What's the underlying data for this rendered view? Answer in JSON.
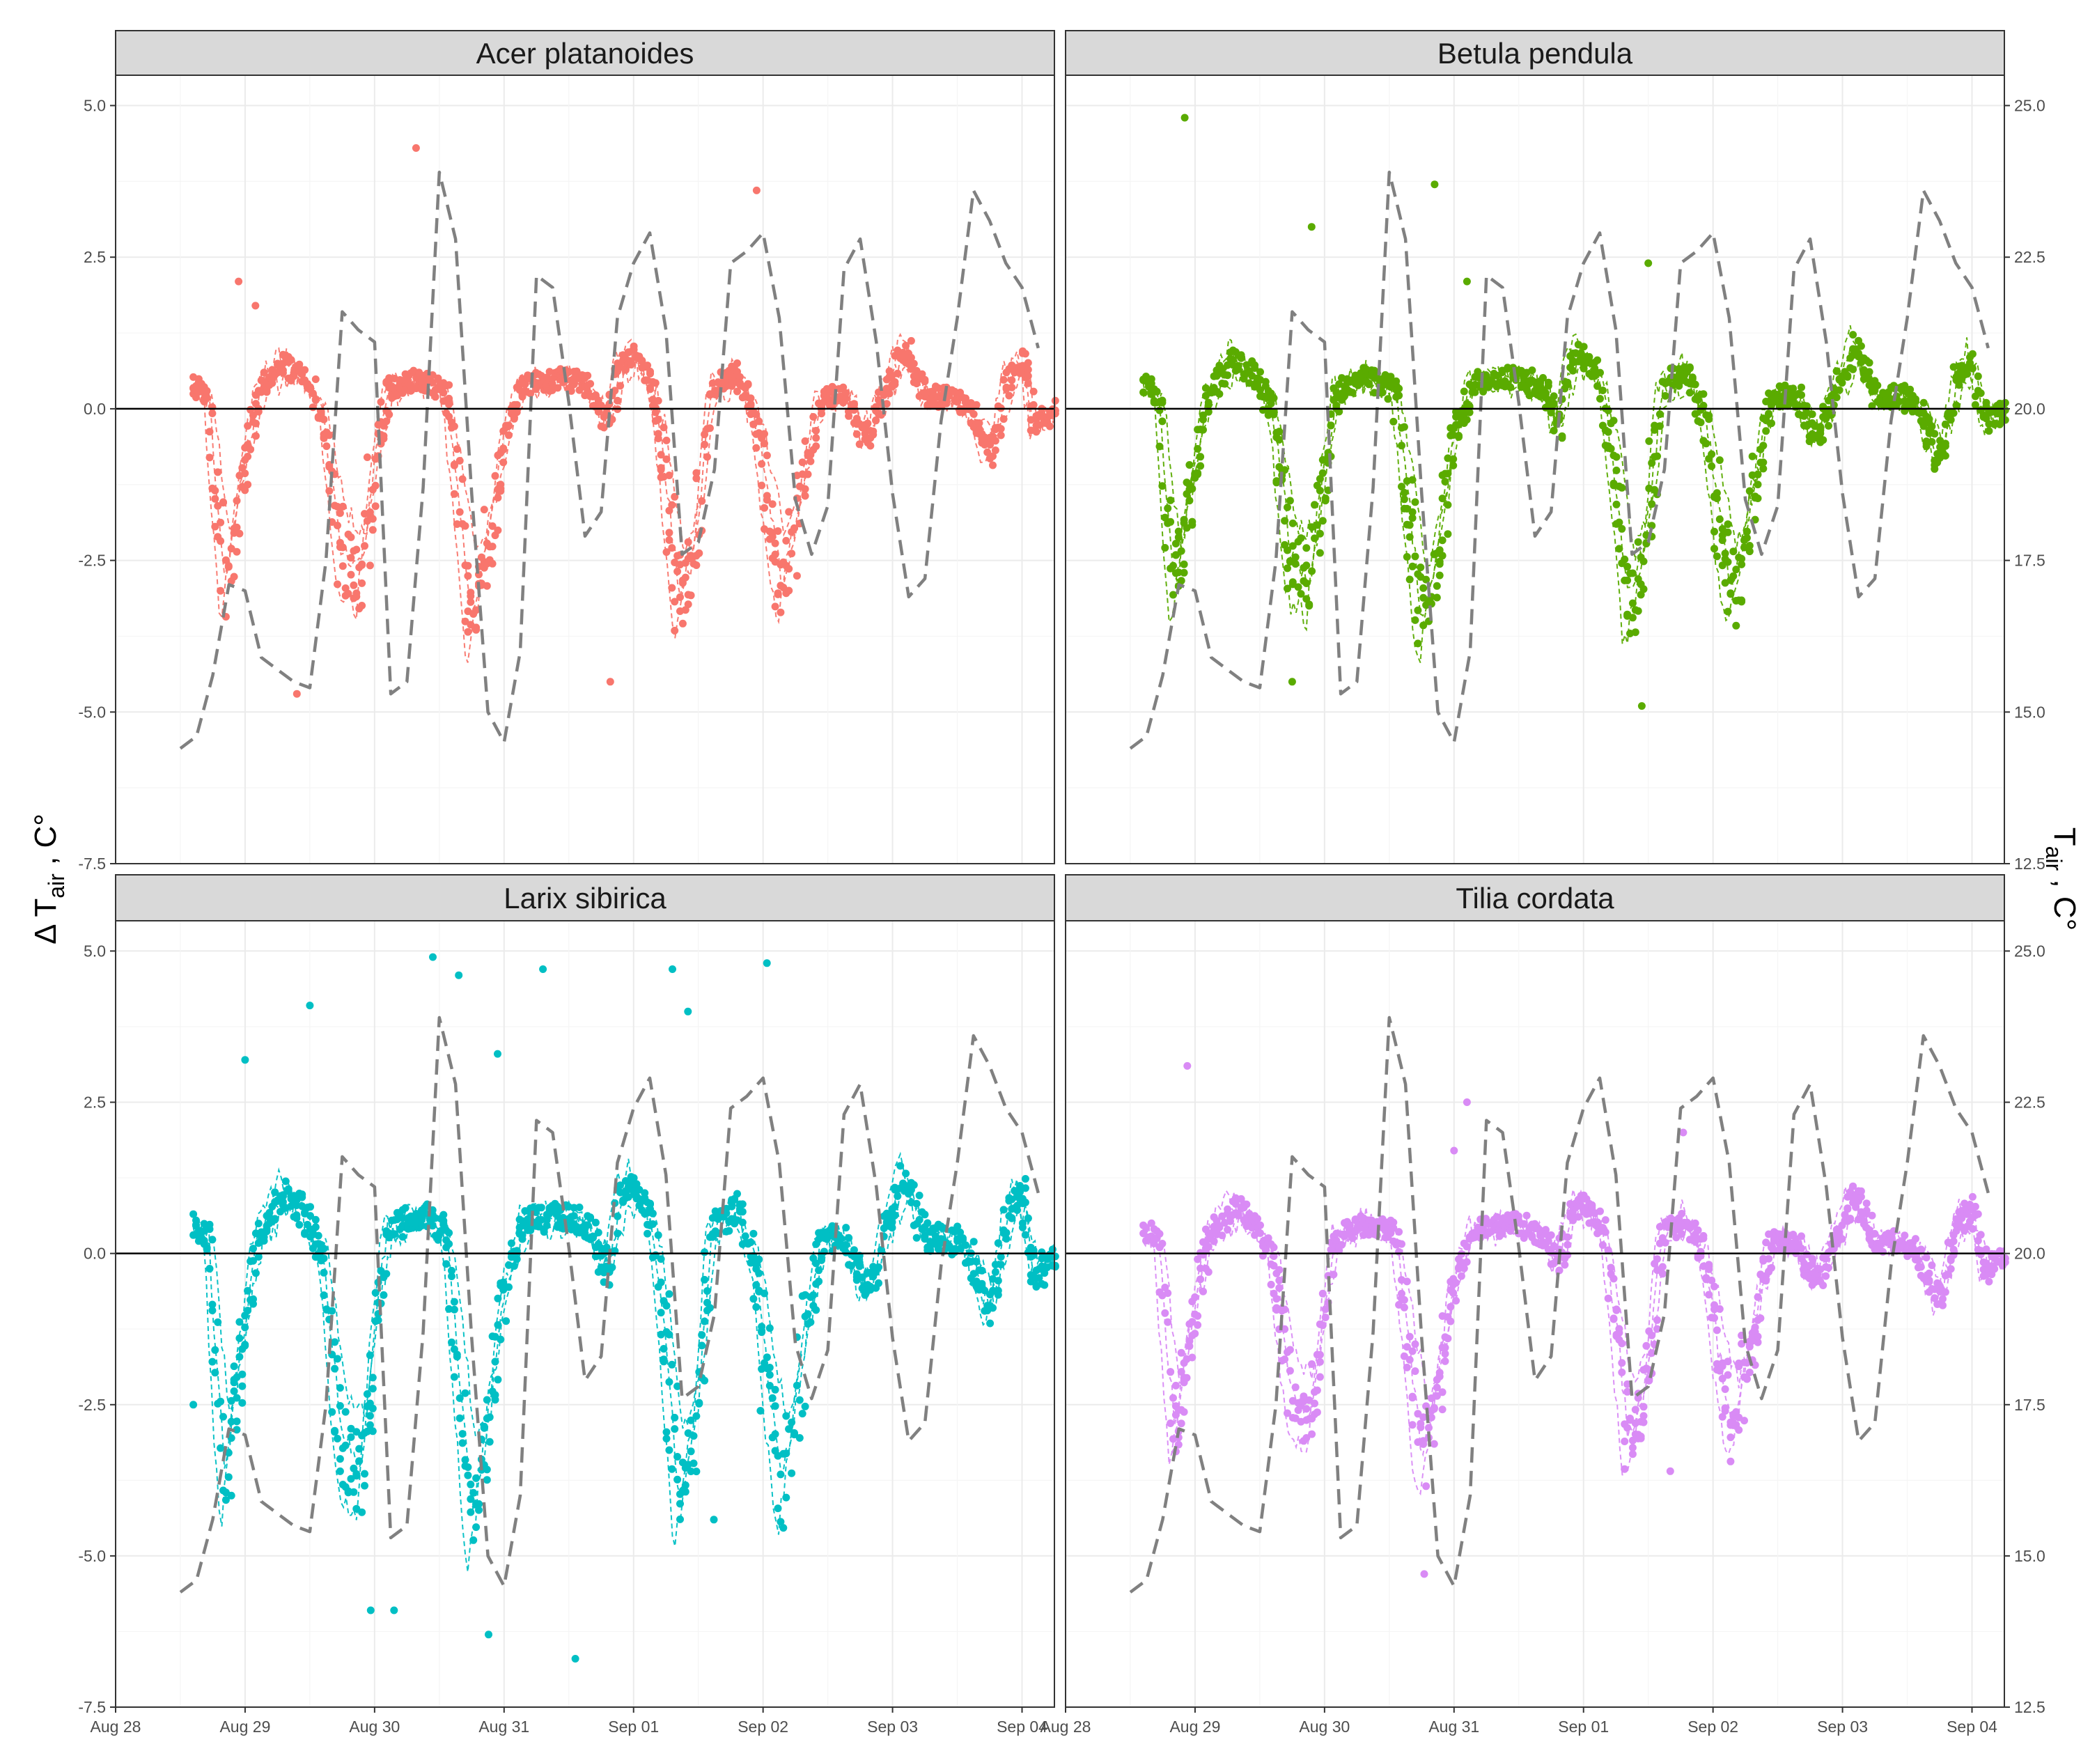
{
  "chart_data": {
    "type": "scatter",
    "layout": "facet-grid 2x2",
    "ylabel": "Δ T",
    "ylabel_subscript": "air",
    "ylabel_suffix": " , C°",
    "y2label": "T",
    "y2label_subscript": "air",
    "y2label_suffix": " , C°",
    "ylim": [
      -7.5,
      5.5
    ],
    "y2lim": [
      12.5,
      25.5
    ],
    "xlim": [
      "2021-08-28 00:00",
      "2021-09-04 06:00"
    ],
    "y_ticks": [
      "5.0",
      "2.5",
      "0.0",
      "-2.5",
      "-5.0",
      "-7.5"
    ],
    "y_tick_values": [
      5,
      2.5,
      0,
      -2.5,
      -5,
      -7.5
    ],
    "y2_ticks": [
      "25.0",
      "22.5",
      "20.0",
      "17.5",
      "15.0",
      "12.5"
    ],
    "y2_tick_values": [
      25,
      22.5,
      20,
      17.5,
      15,
      12.5
    ],
    "x_ticks": [
      "Aug 28",
      "Aug 29",
      "Aug 30",
      "Aug 31",
      "Sep 01",
      "Sep 02",
      "Sep 03",
      "Sep 04"
    ],
    "x_tick_values": [
      "2021-08-28",
      "2021-08-29",
      "2021-08-30",
      "2021-08-31",
      "2021-09-01",
      "2021-09-02",
      "2021-09-03",
      "2021-09-04"
    ],
    "grid": true,
    "hline_y": 0,
    "air_temperature": {
      "style": "dashed",
      "color": "#808080",
      "x": [
        "2021-08-28 12:00",
        "2021-08-28 15:00",
        "2021-08-28 18:00",
        "2021-08-28 21:00",
        "2021-08-29 00:00",
        "2021-08-29 03:00",
        "2021-08-29 06:00",
        "2021-08-29 09:00",
        "2021-08-29 12:00",
        "2021-08-29 15:00",
        "2021-08-29 18:00",
        "2021-08-29 21:00",
        "2021-08-30 00:00",
        "2021-08-30 03:00",
        "2021-08-30 06:00",
        "2021-08-30 09:00",
        "2021-08-30 12:00",
        "2021-08-30 15:00",
        "2021-08-30 18:00",
        "2021-08-30 21:00",
        "2021-08-31 00:00",
        "2021-08-31 03:00",
        "2021-08-31 06:00",
        "2021-08-31 09:00",
        "2021-08-31 12:00",
        "2021-08-31 15:00",
        "2021-08-31 18:00",
        "2021-08-31 21:00",
        "2021-09-01 00:00",
        "2021-09-01 03:00",
        "2021-09-01 06:00",
        "2021-09-01 09:00",
        "2021-09-01 12:00",
        "2021-09-01 15:00",
        "2021-09-01 18:00",
        "2021-09-01 21:00",
        "2021-09-02 00:00",
        "2021-09-02 03:00",
        "2021-09-02 06:00",
        "2021-09-02 09:00",
        "2021-09-02 12:00",
        "2021-09-02 15:00",
        "2021-09-02 18:00",
        "2021-09-02 21:00",
        "2021-09-03 00:00",
        "2021-09-03 03:00",
        "2021-09-03 06:00",
        "2021-09-03 09:00",
        "2021-09-03 12:00",
        "2021-09-03 15:00",
        "2021-09-03 18:00",
        "2021-09-03 21:00",
        "2021-09-04 00:00",
        "2021-09-04 03:00"
      ],
      "values": [
        14.4,
        14.6,
        15.6,
        17.1,
        17.0,
        15.9,
        15.7,
        15.5,
        15.4,
        17.5,
        21.6,
        21.3,
        21.1,
        15.3,
        15.5,
        18.7,
        23.9,
        22.8,
        18.6,
        15.0,
        14.5,
        16.0,
        22.2,
        22.0,
        20.1,
        17.9,
        18.3,
        21.5,
        22.4,
        22.9,
        21.3,
        17.6,
        17.8,
        19.0,
        22.4,
        22.6,
        22.9,
        21.5,
        18.5,
        17.6,
        18.4,
        22.3,
        22.8,
        21.1,
        18.6,
        16.9,
        17.2,
        19.8,
        21.5,
        23.6,
        23.1,
        22.4,
        22.0,
        21.0
      ]
    },
    "series": [
      {
        "name": "Acer platanoides",
        "color": "#F8766D",
        "amp": 1.0,
        "seed": 11,
        "outliers": [
          [
            2.32,
            4.3
          ],
          [
            1.08,
            1.7
          ],
          [
            0.95,
            2.1
          ],
          [
            4.95,
            3.6
          ],
          [
            1.4,
            -4.7
          ],
          [
            3.82,
            -4.5
          ]
        ]
      },
      {
        "name": "Betula pendula",
        "color": "#5AAB00",
        "amp": 1.05,
        "seed": 23,
        "outliers": [
          [
            0.92,
            4.8
          ],
          [
            1.9,
            3.0
          ],
          [
            2.85,
            3.7
          ],
          [
            3.1,
            2.1
          ],
          [
            4.5,
            2.4
          ],
          [
            4.45,
            -4.9
          ],
          [
            1.75,
            -4.5
          ]
        ]
      },
      {
        "name": "Larix sibirica",
        "color": "#00BFC4",
        "amp": 1.3,
        "seed": 37,
        "outliers": [
          [
            1.5,
            4.1
          ],
          [
            2.45,
            4.9
          ],
          [
            2.65,
            4.6
          ],
          [
            3.3,
            4.7
          ],
          [
            5.03,
            4.8
          ],
          [
            4.3,
            4.7
          ],
          [
            4.42,
            4.0
          ],
          [
            1.0,
            3.2
          ],
          [
            2.95,
            3.3
          ],
          [
            1.97,
            -5.9
          ],
          [
            2.15,
            -5.9
          ],
          [
            2.88,
            -6.3
          ],
          [
            3.55,
            -6.7
          ],
          [
            4.62,
            -4.4
          ],
          [
            4.98,
            -2.6
          ],
          [
            0.6,
            -2.5
          ]
        ]
      },
      {
        "name": "Tilia cordata",
        "color": "#D98BF5",
        "amp": 1.0,
        "seed": 53,
        "outliers": [
          [
            0.94,
            3.1
          ],
          [
            3.1,
            2.5
          ],
          [
            2.77,
            -5.3
          ],
          [
            3.0,
            1.7
          ],
          [
            4.67,
            -3.6
          ],
          [
            4.77,
            2.0
          ]
        ]
      }
    ],
    "ylabel_note": "per-panel 30-min observations; dots = sensors, thin dashed = sensor means"
  },
  "colors": {
    "strip_fill": "#D9D9D9",
    "panel_border": "#333333",
    "grid_major": "#EBEBEB",
    "grid_minor": "#F5F5F5"
  }
}
